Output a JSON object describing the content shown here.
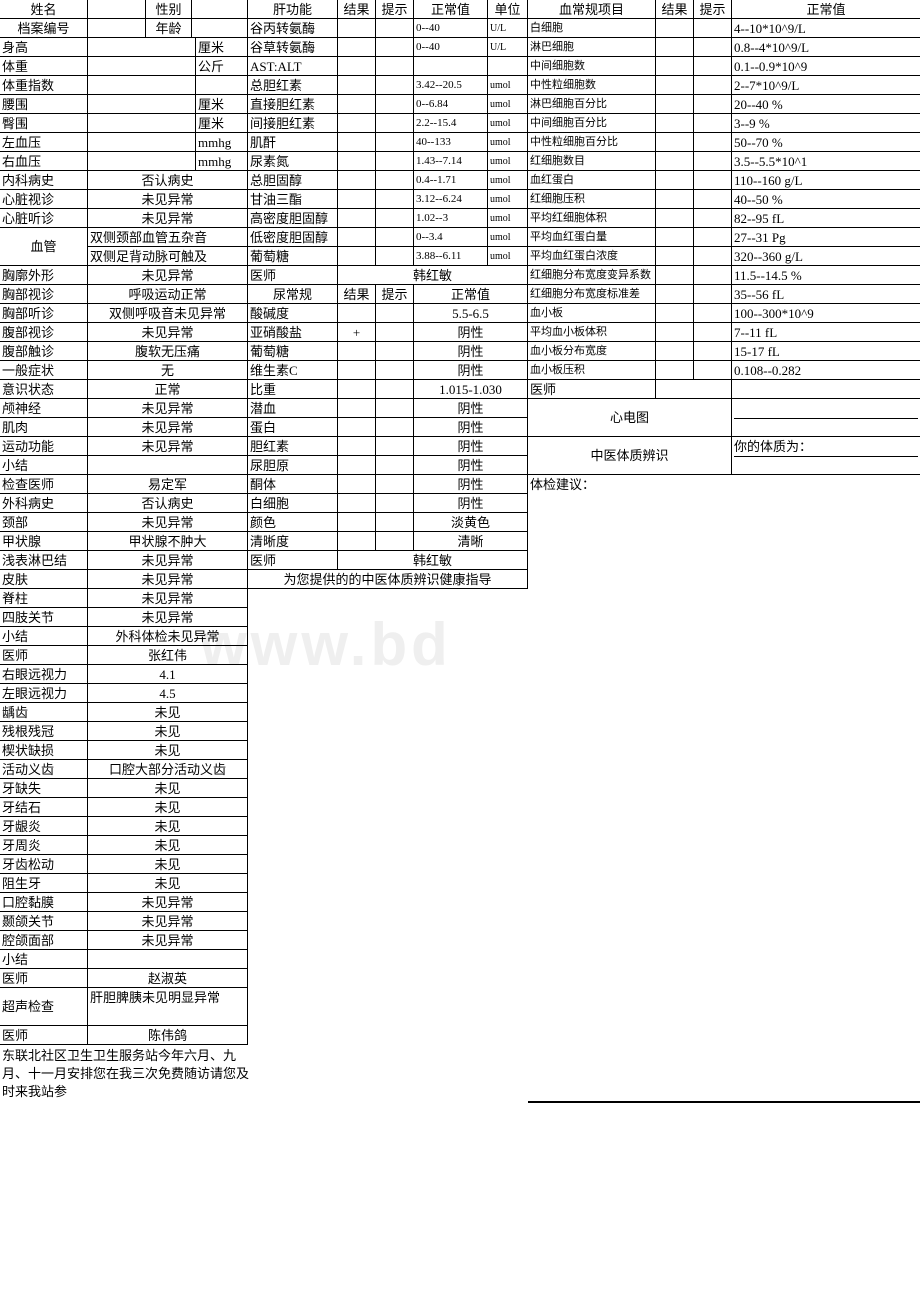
{
  "watermark": "www.bd",
  "col1": {
    "headers": {
      "name": "姓名",
      "sex": "性别",
      "file": "档案编号",
      "age": "年龄"
    },
    "rows": [
      {
        "l": "身高",
        "v": "",
        "u": "厘米"
      },
      {
        "l": "体重",
        "v": "",
        "u": "公斤"
      },
      {
        "l": "体重指数",
        "v": "",
        "u": ""
      },
      {
        "l": "腰围",
        "v": "",
        "u": "厘米"
      },
      {
        "l": "臀围",
        "v": "",
        "u": "厘米"
      },
      {
        "l": "左血压",
        "v": "",
        "u": "mmhg"
      },
      {
        "l": "右血压",
        "v": "",
        "u": "mmhg"
      },
      {
        "l": "内科病史",
        "v": "否认病史"
      },
      {
        "l": "心脏视诊",
        "v": "未见异常"
      },
      {
        "l": "心脏听诊",
        "v": "未见异常"
      }
    ],
    "vessel": {
      "l": "血管",
      "a": "双侧颈部血管五杂音",
      "b": "双侧足背动脉可触及"
    },
    "rows2": [
      {
        "l": "胸廓外形",
        "v": "未见异常"
      },
      {
        "l": "胸部视诊",
        "v": "呼吸运动正常"
      },
      {
        "l": "胸部听诊",
        "v": "双侧呼吸音未见异常"
      },
      {
        "l": "腹部视诊",
        "v": "未见异常"
      },
      {
        "l": "腹部触诊",
        "v": "腹软无压痛"
      },
      {
        "l": "一般症状",
        "v": "无"
      },
      {
        "l": "意识状态",
        "v": "正常"
      },
      {
        "l": "颅神经",
        "v": "未见异常"
      },
      {
        "l": "肌肉",
        "v": "未见异常"
      },
      {
        "l": "运动功能",
        "v": "未见异常"
      },
      {
        "l": "小结",
        "v": ""
      },
      {
        "l": "检查医师",
        "v": "易定军"
      },
      {
        "l": "外科病史",
        "v": "否认病史"
      },
      {
        "l": "颈部",
        "v": "未见异常"
      },
      {
        "l": "甲状腺",
        "v": "甲状腺不肿大"
      },
      {
        "l": "浅表淋巴结",
        "v": "未见异常"
      },
      {
        "l": "皮肤",
        "v": "未见异常"
      },
      {
        "l": "脊柱",
        "v": "未见异常"
      },
      {
        "l": "四肢关节",
        "v": "未见异常"
      },
      {
        "l": "小结",
        "v": "外科体检未见异常"
      },
      {
        "l": "医师",
        "v": "张红伟"
      },
      {
        "l": "右眼远视力",
        "v": "4.1"
      },
      {
        "l": "左眼远视力",
        "v": "4.5"
      },
      {
        "l": "龋齿",
        "v": "未见"
      },
      {
        "l": "残根残冠",
        "v": "未见"
      },
      {
        "l": "楔状缺损",
        "v": "未见"
      },
      {
        "l": " 活动义齿",
        "v": "口腔大部分活动义齿"
      },
      {
        "l": "牙缺失",
        "v": "未见"
      },
      {
        "l": "牙结石",
        "v": "未见"
      },
      {
        "l": "牙龈炎",
        "v": "未见"
      },
      {
        "l": "牙周炎",
        "v": "未见"
      },
      {
        "l": "牙齿松动",
        "v": "未见"
      },
      {
        "l": "阻生牙",
        "v": "未见"
      },
      {
        "l": "口腔黏膜",
        "v": "未见异常"
      },
      {
        "l": "颞颌关节",
        "v": "未见异常"
      },
      {
        "l": "腔颌面部",
        "v": "未见异常"
      },
      {
        "l": "小结",
        "v": ""
      },
      {
        "l": "医师",
        "v": "赵淑英"
      }
    ],
    "ultra": {
      "l": "超声检查",
      "v": "肝胆脾胰未见明显异常"
    },
    "doctor4": {
      "l": "医师",
      "v": "陈伟鸽"
    },
    "footer": "东联北社区卫生卫生服务站今年六月、九月、十一月安排您在我三次免费随访请您及时来我站参"
  },
  "col2": {
    "header": {
      "l": "肝功能",
      "r": "结果",
      "h": "提示",
      "n": "正常值",
      "u": "单位"
    },
    "rows": [
      {
        "l": "谷丙转氨酶",
        "n": "0--40",
        "u": "U/L"
      },
      {
        "l": "谷草转氨酶",
        "n": "0--40",
        "u": "U/L"
      },
      {
        "l": "AST:ALT",
        "n": "",
        "u": ""
      },
      {
        "l": "总胆红素",
        "n": "3.42--20.5",
        "u": "umol"
      },
      {
        "l": "直接胆红素",
        "n": "0--6.84",
        "u": "umol"
      },
      {
        "l": "间接胆红素",
        "n": "2.2--15.4",
        "u": "umol"
      },
      {
        "l": "肌酐",
        "n": "40--133",
        "u": "umol"
      },
      {
        "l": "尿素氮",
        "n": "1.43--7.14",
        "u": "umol"
      },
      {
        "l": "总胆固醇",
        "n": "0.4--1.71",
        "u": "umol"
      },
      {
        "l": "甘油三酯",
        "n": "3.12--6.24",
        "u": "umol"
      },
      {
        "l": "高密度胆固醇",
        "n": "1.02--3",
        "u": "umol"
      },
      {
        "l": "低密度胆固醇",
        "n": "0--3.4",
        "u": "umol"
      },
      {
        "l": "葡萄糖",
        "n": "3.88--6.11",
        "u": "umol"
      }
    ],
    "doctor": {
      "l": "医师",
      "v": "韩红敏"
    },
    "header2": {
      "l": "尿常规",
      "r": "结果",
      "h": "提示",
      "n": "正常值"
    },
    "rows2": [
      {
        "l": "酸碱度",
        "n": "5.5-6.5"
      },
      {
        "l": "亚硝酸盐",
        "r": "+",
        "n": "阴性"
      },
      {
        "l": "葡萄糖",
        "n": "阴性"
      },
      {
        "l": "维生素C",
        "n": "阴性"
      },
      {
        "l": "比重",
        "n": "1.015-1.030"
      },
      {
        "l": "潜血",
        "n": "阴性"
      },
      {
        "l": "蛋白",
        "n": "阴性"
      },
      {
        "l": "胆红素",
        "n": "阴性"
      },
      {
        "l": "尿胆原",
        "n": "阴性"
      },
      {
        "l": "酮体",
        "n": "阴性"
      },
      {
        "l": "白细胞",
        "n": "阴性"
      },
      {
        "l": "颜色",
        "n": "淡黄色"
      },
      {
        "l": "清晰度",
        "n": "清晰"
      }
    ],
    "doctor2": {
      "l": "医师",
      "v": "韩红敏"
    },
    "tcm": "为您提供的的中医体质辨识健康指导"
  },
  "col3": {
    "header": {
      "l": "血常规项目",
      "r": "结果",
      "h": "提示",
      "n": "正常值"
    },
    "rows": [
      {
        "l": "白细胞",
        "n": "4--10*10^9/L"
      },
      {
        "l": "淋巴细胞",
        "n": "0.8--4*10^9/L"
      },
      {
        "l": "中间细胞数",
        "n": "0.1--0.9*10^9"
      },
      {
        "l": "中性粒细胞数",
        "n": "2--7*10^9/L"
      },
      {
        "l": "淋巴细胞百分比",
        "n": "20--40 %"
      },
      {
        "l": "中间细胞百分比",
        "n": "3--9 %"
      },
      {
        "l": "中性粒细胞百分比",
        "n": "50--70 %"
      },
      {
        "l": "红细胞数目",
        "n": "3.5--5.5*10^1"
      },
      {
        "l": "血红蛋白",
        "n": "110--160 g/L"
      },
      {
        "l": "红细胞压积",
        "n": "40--50 %"
      },
      {
        "l": "平均红细胞体积",
        "n": "82--95 fL"
      },
      {
        "l": "平均血红蛋白量",
        "n": "27--31 Pg"
      },
      {
        "l": "平均血红蛋白浓度",
        "n": "320--360 g/L"
      },
      {
        "l": "红细胞分布宽度变异系数",
        "n": "11.5--14.5 %"
      },
      {
        "l": "红细胞分布宽度标准差",
        "n": "35--56 fL"
      },
      {
        "l": "血小板",
        "n": "100--300*10^9"
      },
      {
        "l": "平均血小板体积",
        "n": "7--11 fL"
      },
      {
        "l": "血小板分布宽度",
        "n": "15-17 fL"
      },
      {
        "l": "血小板压积",
        "n": "0.108--0.282"
      }
    ],
    "doctor": {
      "l": "医师",
      "v": ""
    },
    "ecg": {
      "l": "心电图",
      "v": ""
    },
    "tcm": {
      "l": "中医体质辨识",
      "v": "你的体质为："
    },
    "advice": "体检建议："
  }
}
